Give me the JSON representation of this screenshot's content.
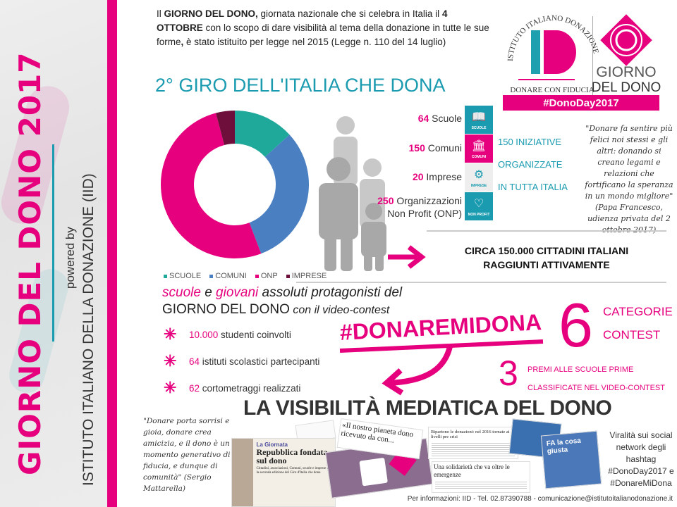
{
  "sidebar": {
    "title": "GIORNO DEL DONO 2017",
    "powered_by": "powered by",
    "institute": "ISTITUTO ITALIANO DELLA DONAZIONE (IID)"
  },
  "intro": {
    "p1": "Il ",
    "b1": "GIORNO DEL DONO,",
    "p2": " giornata nazionale che si celebra in Italia il ",
    "b2": "4 OTTOBRE",
    "p3": " con lo scopo di dare visibilità al tema della donazione in tutte le sue forme",
    "b3": ",",
    "p4": " è stato istituito per legge nel 2015 (Legge n. 110 del 14 luglio)"
  },
  "logo": {
    "arc_text": "ISTITUTO ITALIANO DONAZIONE",
    "monogram": "ID",
    "tagline": "DONARE CON FIDUCIA",
    "giorno": "GIORNO",
    "del_dono": "DEL DONO",
    "hashtag": "#DonoDay2017"
  },
  "giro_title": "2° GIRO DELL'ITALIA CHE DONA",
  "chart_data": {
    "type": "pie",
    "donut": true,
    "categories": [
      "SCUOLE",
      "COMUNI",
      "ONP",
      "IMPRESE"
    ],
    "values": [
      64,
      150,
      250,
      20
    ],
    "colors": [
      "#1fa99b",
      "#4a7fc1",
      "#e6007e",
      "#6d0f3a"
    ],
    "legend": "bottom"
  },
  "stats": [
    {
      "num": "64",
      "label": " Scuole",
      "icon": "book-icon",
      "icon_label": "SCUOLE",
      "color": "#1a9bb0"
    },
    {
      "num": "150",
      "label": " Comuni",
      "icon": "building-icon",
      "icon_label": "COMUNI",
      "color": "#e6007e"
    },
    {
      "num": "20",
      "label": " Imprese",
      "icon": "gears-icon",
      "icon_label": "IMPRESE",
      "color": "#eeeeee"
    },
    {
      "num": "250",
      "label": " Organizzazioni",
      "label2": "Non Profit (ONP)",
      "icon": "heart-icon",
      "icon_label": "NON PROFIT",
      "color": "#1a9bb0"
    }
  ],
  "initiatives": [
    "150 INIZIATIVE",
    "ORGANIZZATE",
    "IN TUTTA ITALIA"
  ],
  "quote_pope": "\"Donare fa sentire più felici noi stessi e gli altri: donando si creano legami e relazioni che fortificano la speranza in un mondo migliore\" (Papa Francesco, udienza privata del 2 ottobre 2017)",
  "citizens": [
    "CIRCA 150.000 CITTADINI ITALIANI",
    "RAGGIUNTI ATTIVAMENTE"
  ],
  "schools": {
    "w1": "scuole",
    "t1": " e ",
    "w2": "giovani",
    "t2": " assoluti protagonisti del",
    "line2": "GIORNO DEL DONO",
    "t3": " con il video-contest"
  },
  "bullets": [
    {
      "num": "10.000",
      "text": " studenti coinvolti"
    },
    {
      "num": "64",
      "text": " istituti scolastici partecipanti"
    },
    {
      "num": "62",
      "text": " cortometraggi realizzati"
    }
  ],
  "contest": {
    "hashtag": "#DONAREMIDONA",
    "six": "6",
    "categorie": "CATEGORIE",
    "contest": "CONTEST",
    "three": "3",
    "premi1": "PREMI ALLE SCUOLE PRIME",
    "premi2": "CLASSIFICATE NEL VIDEO-CONTEST"
  },
  "visibility_title": "LA VISIBILITÀ MEDIATICA DEL DONO",
  "quote_mattarella": "\"Donare porta sorrisi e gioia, donare crea amicizia, e il dono è un momento generativo di fiducia, e dunque di comunità\" (Sergio Mattarella)",
  "clippings": {
    "c1_kicker": "La Giornata",
    "c1_title": "Repubblica fondata sul dono",
    "c1_body": "Cittadini, associazioni, Comuni, scuole e imprese nel la seconda edizione del Giro d'Italia che dona",
    "c2_title": "«Il nostro pianeta dono ricevuto da con...",
    "c3_title": "Ripartono le donazioni: nel 2016 tornate ai livelli pre crisi",
    "c4_title": "Una solidarietà che va oltre le emergenze",
    "c5_title": "FA la cosa giusta"
  },
  "virality": "Viralità sui social network degli hashtag #DonoDay2017 e #DonareMiDona",
  "footer": "Per informazioni: IID - Tel. 02.87390788 - comunicazione@istitutoitalianodonazione.it"
}
